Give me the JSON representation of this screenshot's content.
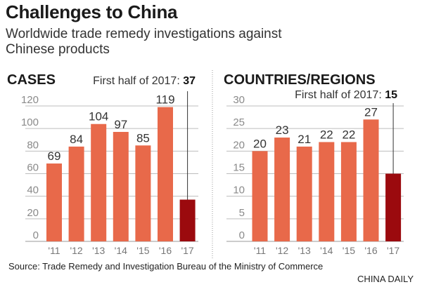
{
  "title": "Challenges to China",
  "subtitle": "Worldwide trade remedy investigations against Chinese products",
  "source": "Source: Trade Remedy and Investigation Bureau of the Ministry of Commerce",
  "credit": "CHINA DAILY",
  "colors": {
    "bar": "#e8694a",
    "highlight": "#9b0a0e",
    "grid": "#bdbdbd"
  },
  "chart_data": [
    {
      "type": "bar",
      "title": "CASES",
      "annotation": {
        "label": "First half of 2017: ",
        "value": "37"
      },
      "categories": [
        "'11",
        "'12",
        "'13",
        "'14",
        "'15",
        "'16",
        "'17"
      ],
      "values": [
        69,
        84,
        104,
        97,
        85,
        119,
        37
      ],
      "data_labels": [
        "69",
        "84",
        "104",
        "97",
        "85",
        "119",
        ""
      ],
      "yticks": [
        0,
        20,
        40,
        60,
        80,
        100,
        120
      ],
      "ylim": [
        0,
        120
      ],
      "grid": true
    },
    {
      "type": "bar",
      "title": "COUNTRIES/REGIONS",
      "annotation": {
        "label": "First half of 2017: ",
        "value": "15"
      },
      "categories": [
        "'11",
        "'12",
        "'13",
        "'14",
        "'15",
        "'16",
        "'17"
      ],
      "values": [
        20,
        23,
        21,
        22,
        22,
        27,
        15
      ],
      "data_labels": [
        "20",
        "23",
        "21",
        "22",
        "22",
        "27",
        ""
      ],
      "yticks": [
        0,
        5,
        10,
        15,
        20,
        25,
        30
      ],
      "ylim": [
        0,
        30
      ],
      "grid": true
    }
  ]
}
